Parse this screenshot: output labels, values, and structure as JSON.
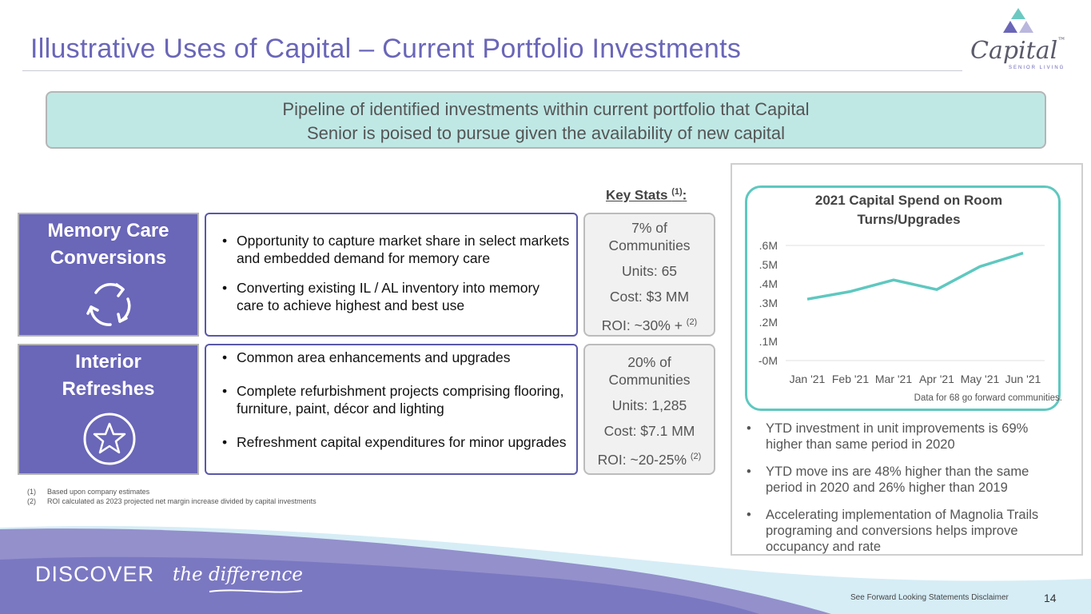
{
  "slide": {
    "title": "Illustrative Uses of Capital – Current Portfolio Investments",
    "page_number": "14",
    "disclaimer": "See Forward Looking Statements Disclaimer"
  },
  "logo": {
    "word": "Capital",
    "tm": "™",
    "sub": "SENIOR LIVING"
  },
  "banner": {
    "line1": "Pipeline of identified investments within current portfolio that Capital",
    "line2": "Senior is poised to pursue given the availability of new capital"
  },
  "key_stats": {
    "label": "Key Stats ",
    "sup": "(1)",
    "colon": ":"
  },
  "initiatives": [
    {
      "name_line1": "Memory Care",
      "name_line2": "Conversions",
      "icon": "refresh-cycle-icon",
      "bullets": [
        "Opportunity to capture market share in select markets  and embedded demand for memory care",
        " Converting existing IL / AL inventory into memory care to achieve highest and best use"
      ],
      "stats": {
        "communities_line1": "7% of",
        "communities_line2": "Communities",
        "units": "Units: 65",
        "cost": "Cost: $3 MM",
        "roi": "ROI: ~30% + ",
        "roi_sup": "(2)"
      }
    },
    {
      "name_line1": "Interior",
      "name_line2": "Refreshes",
      "icon": "star-circle-icon",
      "bullets": [
        "Common area enhancements and upgrades",
        "Complete refurbishment projects comprising flooring, furniture, paint, décor and lighting",
        "Refreshment capital expenditures for minor upgrades"
      ],
      "stats": {
        "communities_line1": "20% of",
        "communities_line2": "Communities",
        "units": "Units: 1,285",
        "cost": "Cost: $7.1 MM",
        "roi": "ROI: ~20-25% ",
        "roi_sup": "(2)"
      }
    }
  ],
  "chart_data": {
    "type": "line",
    "title_line1": "2021 Capital Spend on Room",
    "title_line2": "Turns/Upgrades",
    "categories": [
      "Jan '21",
      "Feb '21",
      "Mar '21",
      "Apr '21",
      "May '21",
      "Jun '21"
    ],
    "series": [
      {
        "name": "Capital Spend",
        "values": [
          0.32,
          0.36,
          0.42,
          0.37,
          0.49,
          0.56
        ]
      }
    ],
    "y_ticks": [
      0,
      0.1,
      0.2,
      0.3,
      0.4,
      0.5,
      0.6
    ],
    "y_tick_labels": [
      "-0M",
      ".1M",
      ".2M",
      ".3M",
      ".4M",
      ".5M",
      ".6M"
    ],
    "ylim": [
      0,
      0.65
    ],
    "grid": "major-horizontal-at-0-and-0.6",
    "line_color": "#5ec8c0",
    "note": "Data for 68 go forward communities."
  },
  "panel_bullets": [
    "YTD investment in unit improvements is 69% higher than same period in 2020",
    "YTD move ins are 48% higher than the same period in 2020 and 26% higher than 2019",
    "Accelerating implementation of Magnolia Trails programing and conversions helps improve occupancy and rate"
  ],
  "footnotes": [
    {
      "num": "(1)",
      "text": "Based upon company estimates"
    },
    {
      "num": "(2)",
      "text": "ROI calculated as 2023 projected net margin increase divided by capital investments"
    }
  ],
  "footer": {
    "discover": "DISCOVER",
    "tagline": "the difference"
  },
  "colors": {
    "primary": "#6a66b8",
    "teal": "#5ec8c0",
    "banner": "#bfe8e5"
  }
}
